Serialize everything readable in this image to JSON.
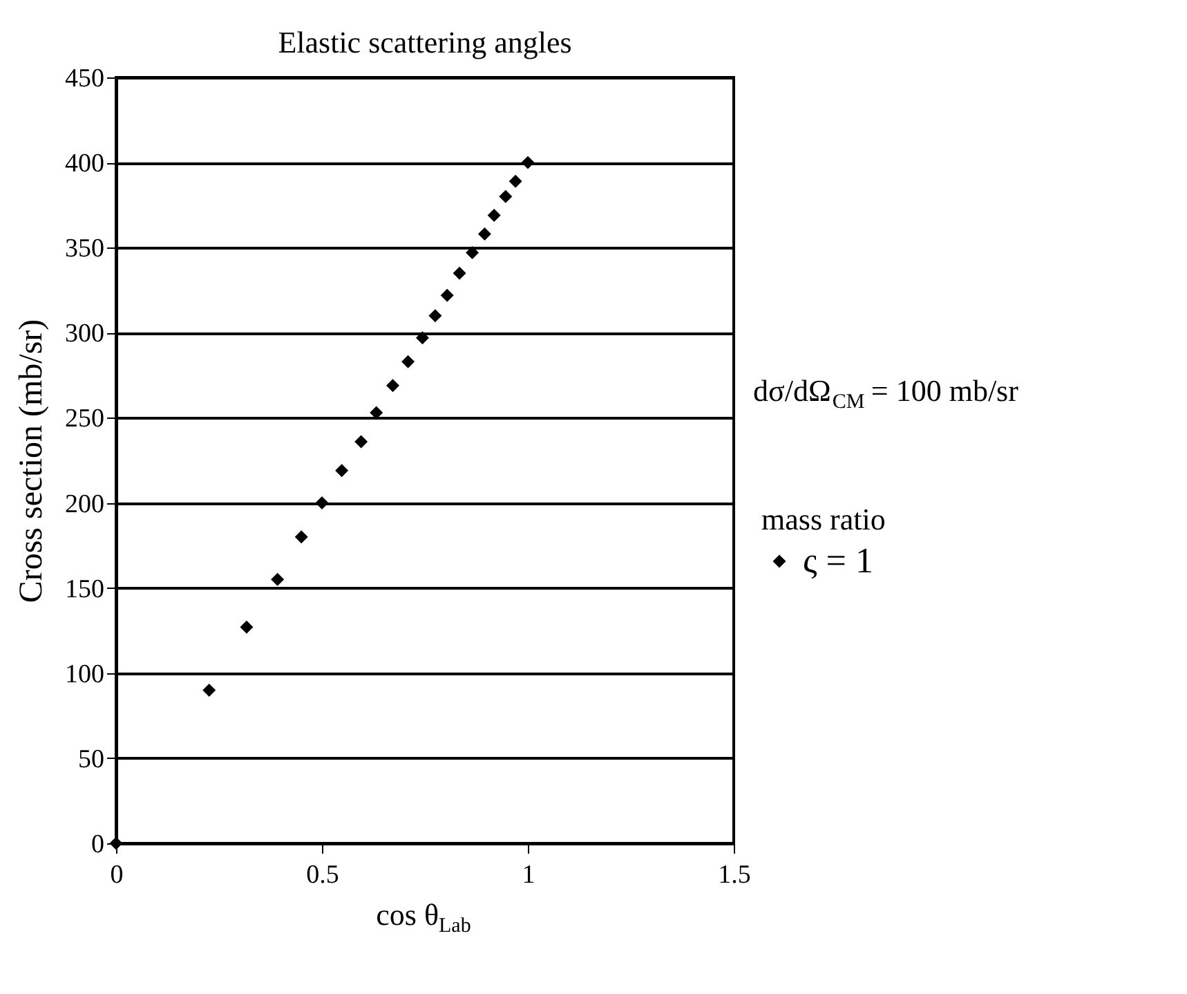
{
  "chart_data": {
    "type": "scatter",
    "title": "Elastic scattering angles",
    "xlabel": "cos θ$_{Lab}$",
    "ylabel": "Cross section (mb/sr)",
    "legend_title": "mass ratio",
    "annotations": [
      "dσ/dΩ$_{CM}$ = 100 mb/sr"
    ],
    "series": [
      {
        "name": "ς = 1",
        "color": "#000000",
        "x": [
          0,
          0.226,
          0.317,
          0.392,
          0.45,
          0.5,
          0.548,
          0.595,
          0.632,
          0.672,
          0.709,
          0.744,
          0.775,
          0.804,
          0.834,
          0.865,
          0.895,
          0.918,
          0.946,
          0.97,
          1.0
        ],
        "values": [
          0,
          90,
          127,
          155,
          180,
          200,
          219,
          236,
          253,
          269,
          283,
          297,
          310,
          322,
          335,
          347,
          358,
          369,
          380,
          389,
          400
        ]
      }
    ],
    "xlim": [
      0,
      1.5
    ],
    "xticks": [
      0,
      0.5,
      1,
      1.5
    ],
    "ylim": [
      0,
      450
    ],
    "yticks": [
      0,
      50,
      100,
      150,
      200,
      250,
      300,
      350,
      400,
      450
    ],
    "grid": "y",
    "legend": "right",
    "marker": "diamond"
  }
}
